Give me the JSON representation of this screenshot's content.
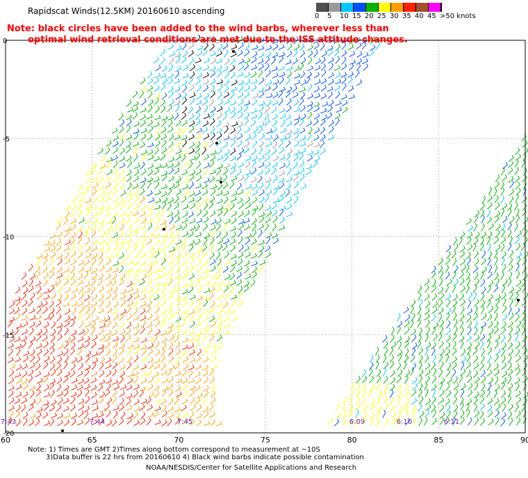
{
  "title": "Rapidscat Winds(12.5KM) 20160610 ascending",
  "note": {
    "line1": "Note: black circles have been added to the wind barbs, wherever less than",
    "line2": "optimal wind retrieval conditions are met due to the ISS attitude changes."
  },
  "color_scale": {
    "labels": [
      "0",
      "5",
      "10",
      "15",
      "20",
      "25",
      "30",
      "35",
      "40",
      "45",
      ">50 knots"
    ],
    "colors": [
      "#505050",
      "#9a9a9a",
      "#00c8ff",
      "#0050ff",
      "#00b400",
      "#ffff00",
      "#ffa000",
      "#ff2000",
      "#a0522d",
      "#ff00ff",
      "#6000a0"
    ]
  },
  "axes": {
    "lon_labels": [
      "60",
      "65",
      "70",
      "75",
      "80",
      "85",
      "90"
    ],
    "lat_labels": [
      "0",
      "-5",
      "-10",
      "-15",
      "-20"
    ]
  },
  "swath_times": [
    "7:43",
    "7:44",
    "7:45",
    "6:09",
    "6:10",
    "6:11"
  ],
  "footer": {
    "line1": "Note: 1) Times are GMT 2)Times along bottom correspond to measurement at ~10S",
    "line2": "3)Data buffer is 22 hrs from 20160610 4) Black wind barbs indicate possible contamination",
    "line3": "NOAA/NESDIS/Center for Satellite Applications and Research"
  }
}
